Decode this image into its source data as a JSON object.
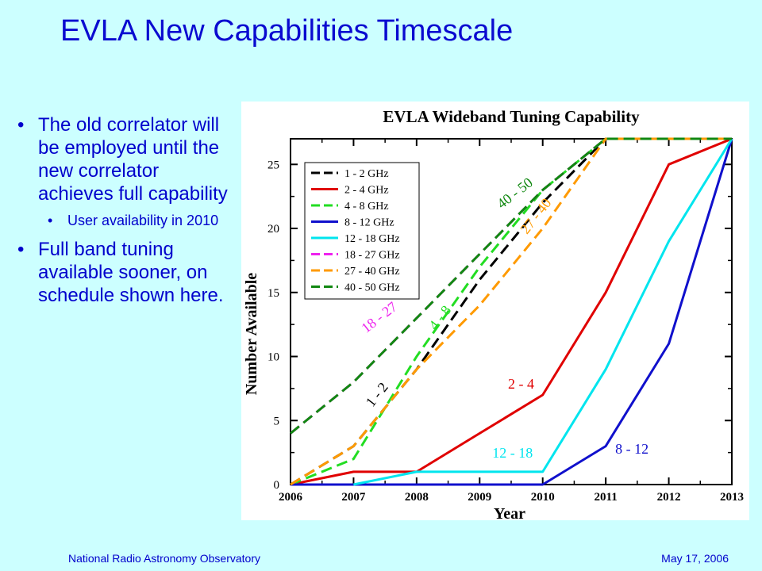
{
  "slide": {
    "title": "EVLA New Capabilities Timescale",
    "bullets": [
      {
        "level": 1,
        "text": "The old correlator will be employed until the new correlator achieves full capability"
      },
      {
        "level": 2,
        "text": "User availability in 2010"
      },
      {
        "level": 1,
        "text": "Full band tuning available sooner, on schedule shown here."
      }
    ],
    "footer_left": "National Radio Astronomy Observatory",
    "footer_right": "May 17, 2006"
  },
  "chart_data": {
    "type": "line",
    "title": "EVLA Wideband Tuning Capability",
    "xlabel": "Year",
    "ylabel": "Number Available",
    "xlim": [
      2006,
      2013
    ],
    "ylim": [
      0,
      27
    ],
    "xticks": [
      2006,
      2007,
      2008,
      2009,
      2010,
      2011,
      2012,
      2013
    ],
    "yticks": [
      0,
      5,
      10,
      15,
      20,
      25
    ],
    "legend_position": "top-left",
    "series": [
      {
        "name": "1 - 2 GHz",
        "color": "#000000",
        "dash": true,
        "x": [
          2006,
          2007,
          2008,
          2009,
          2010,
          2011,
          2012,
          2013
        ],
        "y": [
          0,
          3,
          9,
          16,
          22,
          27,
          27,
          27
        ]
      },
      {
        "name": "2 - 4 GHz",
        "color": "#e00000",
        "dash": false,
        "x": [
          2006,
          2007,
          2008,
          2009,
          2010,
          2011,
          2012,
          2013
        ],
        "y": [
          0,
          1,
          1,
          4,
          7,
          15,
          25,
          27
        ]
      },
      {
        "name": "4 - 8 GHz",
        "color": "#22dd22",
        "dash": true,
        "x": [
          2006,
          2007,
          2008,
          2009,
          2010,
          2011,
          2012,
          2013
        ],
        "y": [
          0,
          2,
          10,
          17,
          23,
          27,
          27,
          27
        ]
      },
      {
        "name": "8 - 12 GHz",
        "color": "#1010cc",
        "dash": false,
        "x": [
          2006,
          2007,
          2008,
          2009,
          2010,
          2011,
          2012,
          2013
        ],
        "y": [
          0,
          0,
          0,
          0,
          0,
          3,
          11,
          27
        ]
      },
      {
        "name": "12 - 18 GHz",
        "color": "#00e5ee",
        "dash": false,
        "x": [
          2007,
          2008,
          2009,
          2010,
          2011,
          2012,
          2013
        ],
        "y": [
          0,
          1,
          1,
          1,
          9,
          19,
          27
        ]
      },
      {
        "name": "18 - 27 GHz",
        "color": "#ee22ee",
        "dash": true,
        "x": [
          2006,
          2007,
          2008,
          2009,
          2010,
          2011,
          2012,
          2013
        ],
        "y": [
          4,
          8,
          13,
          18,
          23,
          27,
          27,
          27
        ]
      },
      {
        "name": "27 - 40 GHz",
        "color": "#ff9a00",
        "dash": true,
        "x": [
          2006,
          2007,
          2008,
          2009,
          2010,
          2011,
          2012,
          2013
        ],
        "y": [
          0,
          3,
          9,
          14,
          20,
          27,
          27,
          27
        ]
      },
      {
        "name": "40 - 50 GHz",
        "color": "#118811",
        "dash": true,
        "x": [
          2006,
          2007,
          2008,
          2009,
          2010,
          2011,
          2012,
          2013
        ],
        "y": [
          4,
          8,
          13,
          18,
          23,
          27,
          27,
          27
        ]
      }
    ],
    "annotations": [
      {
        "text": "1 - 2",
        "x": 2007.3,
        "y": 6,
        "color": "#000000",
        "angle": -52
      },
      {
        "text": "18 - 27",
        "x": 2007.2,
        "y": 11.8,
        "color": "#ee22ee",
        "angle": -38
      },
      {
        "text": "4 - 8",
        "x": 2008.3,
        "y": 12,
        "color": "#22dd22",
        "angle": -52
      },
      {
        "text": "40 - 50",
        "x": 2009.35,
        "y": 21.5,
        "color": "#118811",
        "angle": -38
      },
      {
        "text": "27 - 40",
        "x": 2009.75,
        "y": 19.5,
        "color": "#ff9a00",
        "angle": -52
      },
      {
        "text": "2 - 4",
        "x": 2009.45,
        "y": 7.5,
        "color": "#e00000",
        "angle": 0
      },
      {
        "text": "12 - 18",
        "x": 2009.2,
        "y": 2.1,
        "color": "#00e5ee",
        "angle": 0
      },
      {
        "text": "8 - 12",
        "x": 2011.15,
        "y": 2.4,
        "color": "#1010cc",
        "angle": 0
      }
    ]
  }
}
